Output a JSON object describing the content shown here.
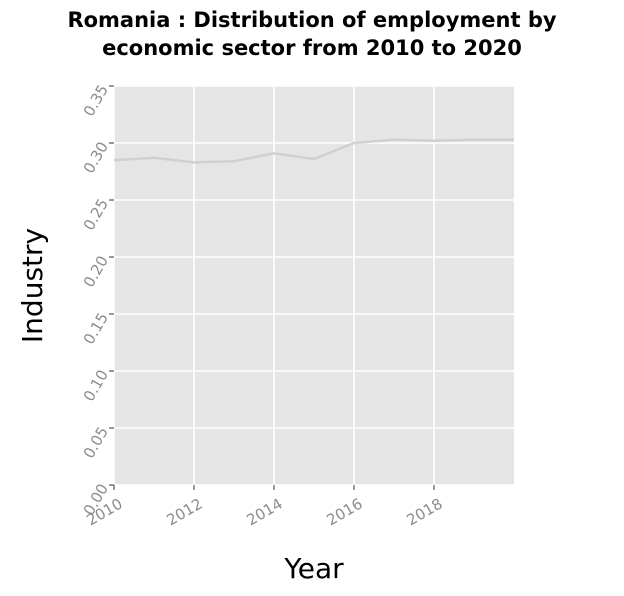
{
  "chart_data": {
    "type": "line",
    "title_line1": "Romania : Distribution of employment by",
    "title_line2": "economic sector from 2010 to 2020",
    "xlabel": "Year",
    "ylabel": "Industry",
    "x": [
      2010,
      2011,
      2012,
      2013,
      2014,
      2015,
      2016,
      2017,
      2018,
      2019,
      2020
    ],
    "series": [
      {
        "values": [
          0.285,
          0.287,
          0.283,
          0.284,
          0.291,
          0.286,
          0.3,
          0.303,
          0.302,
          0.303,
          0.303
        ]
      }
    ],
    "xlim": [
      2010,
      2020
    ],
    "ylim": [
      0,
      0.35
    ],
    "x_ticks": [
      "2010",
      "2012",
      "2014",
      "2016",
      "2018"
    ],
    "x_tick_values": [
      2010,
      2012,
      2014,
      2016,
      2018
    ],
    "y_ticks": [
      "0.00",
      "0.05",
      "0.10",
      "0.15",
      "0.20",
      "0.25",
      "0.30",
      "0.35"
    ],
    "y_tick_values": [
      0,
      0.05,
      0.1,
      0.15,
      0.2,
      0.25,
      0.3,
      0.35
    ],
    "grid": true,
    "colors": {
      "panel": "#e5e5e5",
      "grid": "#ffffff",
      "line": "#d0d0d0",
      "tick_label": "#8c8c8c"
    }
  }
}
